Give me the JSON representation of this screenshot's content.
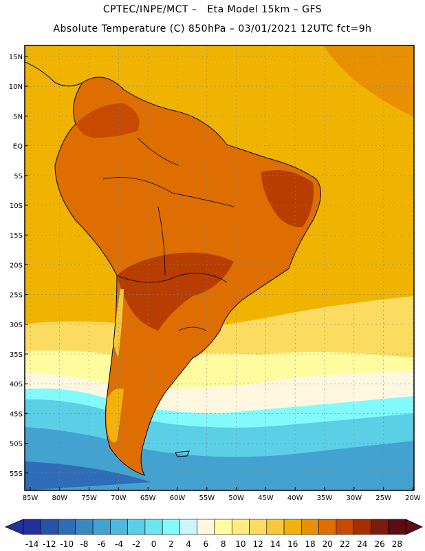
{
  "header": {
    "line1": "CPTEC/INPE/MCT –   Eta Model 15km – GFS",
    "line2": "Absolute Temperature (C) 850hPa – 03/01/2021 12UTC fct=9h"
  },
  "map": {
    "lat_ticks": [
      "15N",
      "10N",
      "5N",
      "EQ",
      "5S",
      "10S",
      "15S",
      "20S",
      "25S",
      "30S",
      "35S",
      "40S",
      "45S",
      "50S",
      "55S"
    ],
    "lon_ticks": [
      "85W",
      "80W",
      "75W",
      "70W",
      "65W",
      "60W",
      "55W",
      "50W",
      "45W",
      "40W",
      "35W",
      "30W",
      "25W",
      "20W"
    ],
    "colors": {
      "frame": "#000000",
      "ocean_warm": "#f0b400",
      "land_hot": "#d05a00",
      "land_hotter": "#b73e00",
      "cool_band": "#fff4b0",
      "cold": "#3fb3de",
      "colder": "#2b8ec4"
    }
  },
  "colorbar": {
    "labels": [
      "-14",
      "-12",
      "-10",
      "-8",
      "-6",
      "-4",
      "-2",
      "0",
      "2",
      "4",
      "6",
      "8",
      "10",
      "12",
      "14",
      "16",
      "18",
      "20",
      "22",
      "24",
      "26",
      "28"
    ],
    "colors": [
      "#23329a",
      "#2851a8",
      "#2f6db8",
      "#3988c4",
      "#43a2d0",
      "#4fb9dc",
      "#5bcfe6",
      "#6ce6ee",
      "#82fafd",
      "#ccf5fb",
      "#fff7e0",
      "#fffca0",
      "#feec80",
      "#fcdc60",
      "#f8c838",
      "#f2b20c",
      "#e89000",
      "#de6e00",
      "#c84a00",
      "#a33000",
      "#7c1c0c",
      "#5e0c14"
    ]
  }
}
